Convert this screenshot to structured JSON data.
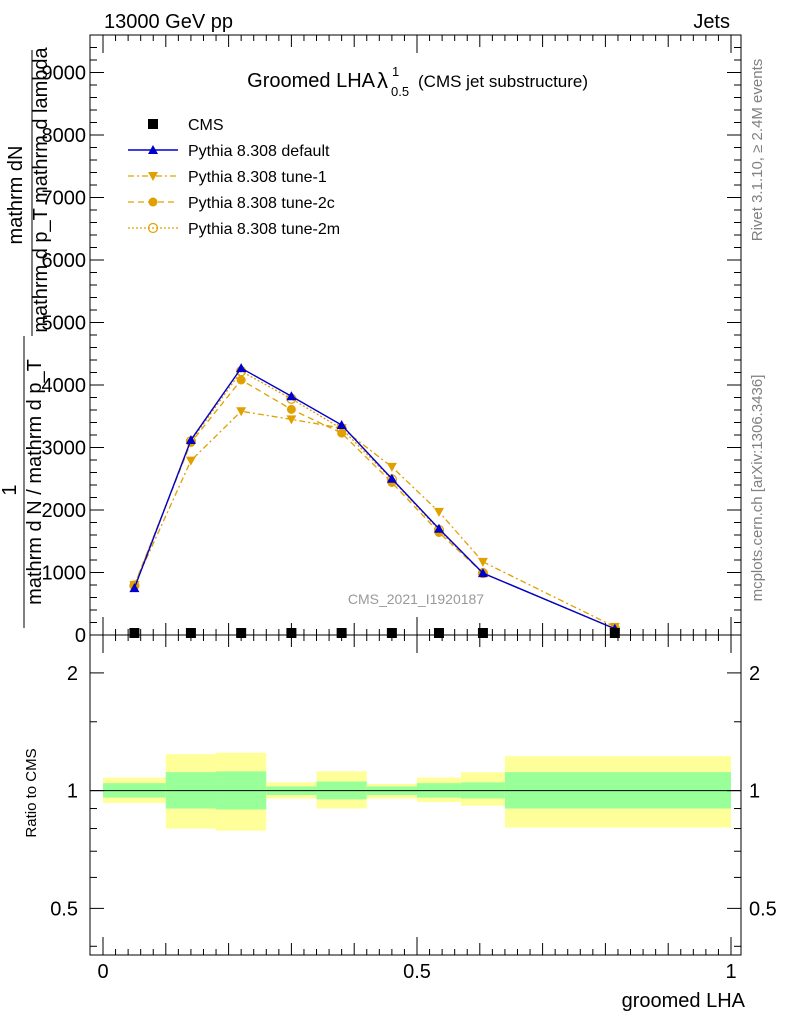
{
  "header": {
    "left": "13000 GeV pp",
    "right": "Jets"
  },
  "side": {
    "rivet": "Rivet 3.1.10, ≥ 2.4M events",
    "source": "mcplots.cern.ch [arXiv:1306.3436]"
  },
  "main_plot": {
    "title_main": "Groomed LHA",
    "title_lambda": "λ",
    "title_sup": "1",
    "title_sub": "0.5",
    "title_suffix": "(CMS jet substructure)",
    "ylabel_numerator": "mathrm dN",
    "ylabel_denominator_1": "mathrm d p_T mathrm d lambda",
    "ylabel_one": "1",
    "ylabel_denominator_2": "mathrm d N / mathrm d p_T",
    "watermark": "CMS_2021_I1920187",
    "yticks": [
      "0",
      "1000",
      "2000",
      "3000",
      "4000",
      "5000",
      "6000",
      "7000",
      "8000",
      "9000"
    ]
  },
  "ratio_plot": {
    "ylabel": "Ratio to CMS",
    "yticks": [
      "0.5",
      "1",
      "2"
    ],
    "xticks": [
      "0",
      "0.5",
      "1"
    ],
    "xlabel": "groomed LHA"
  },
  "colors": {
    "cms": "#000000",
    "default": "#0000cc",
    "tune": "#e0a000",
    "band_inner": "#99ff99",
    "band_outer": "#ffff99"
  },
  "chart_data": {
    "type": "line",
    "x_range": [
      0,
      1
    ],
    "y_range_main": [
      0,
      9600
    ],
    "y_range_ratio_log": [
      0.38,
      2.5
    ],
    "x": [
      0.05,
      0.14,
      0.22,
      0.3,
      0.38,
      0.46,
      0.535,
      0.605,
      0.815
    ],
    "series": [
      {
        "name": "CMS",
        "marker": "square",
        "style": "marker",
        "values": [
          0,
          0,
          0,
          0,
          0,
          0,
          0,
          0,
          0
        ]
      },
      {
        "name": "Pythia 8.308 default",
        "marker": "triangle-up",
        "style": "solid",
        "values": [
          750,
          3120,
          4270,
          3820,
          3360,
          2500,
          1700,
          990,
          100
        ]
      },
      {
        "name": "Pythia 8.308 tune-1",
        "marker": "triangle-down",
        "style": "dashdot",
        "values": [
          800,
          2790,
          3580,
          3450,
          3310,
          2690,
          1970,
          1170,
          130
        ]
      },
      {
        "name": "Pythia 8.308 tune-2c",
        "marker": "circle-filled",
        "style": "dashed",
        "values": [
          800,
          3080,
          4080,
          3610,
          3230,
          2440,
          1640,
          990,
          100
        ]
      },
      {
        "name": "Pythia 8.308 tune-2m",
        "marker": "circle-open",
        "style": "dotted",
        "values": [
          790,
          3100,
          4220,
          3780,
          3300,
          2490,
          1680,
          990,
          100
        ]
      }
    ],
    "ratio_bands": [
      {
        "x0": 0.0,
        "x1": 0.1,
        "inner": [
          0.96,
          1.045
        ],
        "outer": [
          0.93,
          1.08
        ]
      },
      {
        "x0": 0.1,
        "x1": 0.18,
        "inner": [
          0.9,
          1.115
        ],
        "outer": [
          0.8,
          1.24
        ]
      },
      {
        "x0": 0.18,
        "x1": 0.26,
        "inner": [
          0.895,
          1.12
        ],
        "outer": [
          0.79,
          1.25
        ]
      },
      {
        "x0": 0.26,
        "x1": 0.34,
        "inner": [
          0.975,
          1.025
        ],
        "outer": [
          0.955,
          1.05
        ]
      },
      {
        "x0": 0.34,
        "x1": 0.42,
        "inner": [
          0.95,
          1.055
        ],
        "outer": [
          0.9,
          1.12
        ]
      },
      {
        "x0": 0.42,
        "x1": 0.5,
        "inner": [
          0.975,
          1.025
        ],
        "outer": [
          0.955,
          1.04
        ]
      },
      {
        "x0": 0.5,
        "x1": 0.57,
        "inner": [
          0.96,
          1.045
        ],
        "outer": [
          0.935,
          1.08
        ]
      },
      {
        "x0": 0.57,
        "x1": 0.64,
        "inner": [
          0.955,
          1.05
        ],
        "outer": [
          0.915,
          1.115
        ]
      },
      {
        "x0": 0.64,
        "x1": 1.0,
        "inner": [
          0.9,
          1.115
        ],
        "outer": [
          0.805,
          1.225
        ]
      }
    ]
  }
}
